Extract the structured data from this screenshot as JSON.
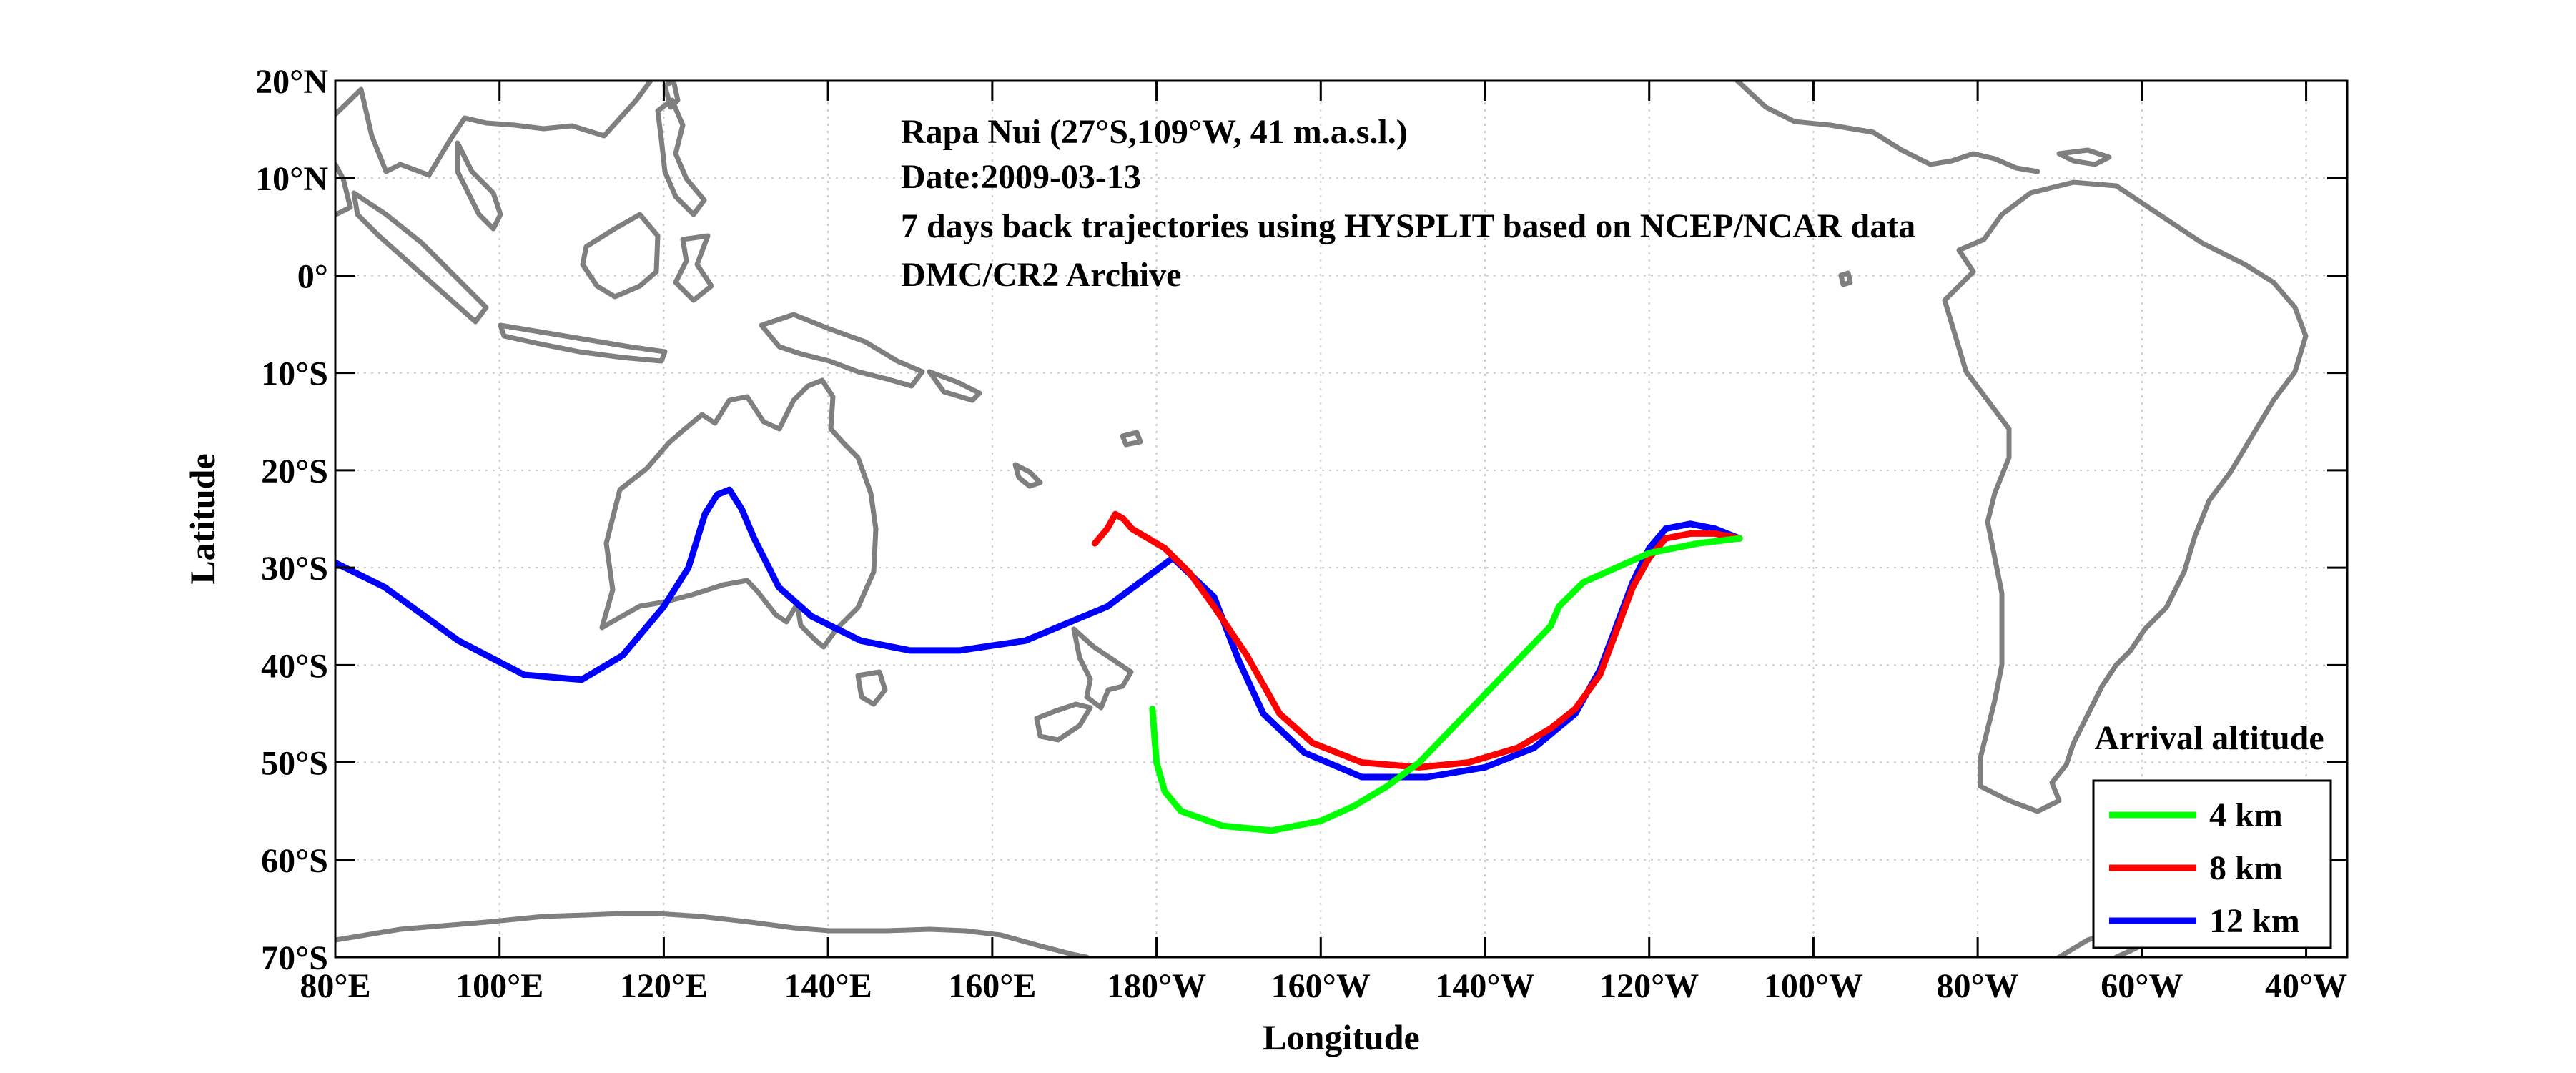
{
  "annotation": {
    "line1": "Rapa Nui (27°S,109°W, 41 m.a.s.l.)",
    "line2": "Date:2009-03-13",
    "line3": "7 days back trajectories using HYSPLIT based on NCEP/NCAR data",
    "line4": "DMC/CR2 Archive"
  },
  "axes": {
    "xlabel": "Longitude",
    "ylabel": "Latitude"
  },
  "colors": {
    "coast": "#7f7f7f",
    "grid": "#c8c8c8",
    "series": [
      "#00ff00",
      "#ff0000",
      "#0000ff"
    ]
  },
  "chart_data": {
    "type": "line",
    "xlim": [
      80,
      325
    ],
    "ylim": [
      -70,
      20
    ],
    "grid": true,
    "legend_placement": "bottom-right",
    "legend_title": "Arrival altitude",
    "xticks": [
      80,
      100,
      120,
      140,
      160,
      180,
      200,
      220,
      240,
      260,
      280,
      300,
      320
    ],
    "xticklabels": [
      "80°E",
      "100°E",
      "120°E",
      "140°E",
      "160°E",
      "180°W",
      "160°W",
      "140°W",
      "120°W",
      "100°W",
      "80°W",
      "60°W",
      "40°W"
    ],
    "yticks": [
      20,
      10,
      0,
      -10,
      -20,
      -30,
      -40,
      -50,
      -60,
      -70
    ],
    "yticklabels": [
      "20°N",
      "10°N",
      "0°",
      "10°S",
      "20°S",
      "30°S",
      "40°S",
      "50°S",
      "60°S",
      "70°S"
    ],
    "series": [
      {
        "name": "4 km",
        "x": [
          251,
          246,
          240,
          236,
          232,
          229,
          228,
          224,
          220,
          216,
          212,
          208,
          204,
          200,
          194,
          188,
          183,
          181,
          180,
          179.5
        ],
        "y": [
          -27,
          -27.5,
          -28.5,
          -30,
          -31.5,
          -34,
          -36,
          -39.5,
          -43,
          -46.5,
          -50,
          -52.5,
          -54.5,
          -56,
          -57,
          -56.5,
          -55,
          -53,
          -50,
          -44.5
        ]
      },
      {
        "name": "8 km",
        "x": [
          251,
          248,
          245,
          242,
          240,
          238,
          236,
          234,
          231,
          228,
          224,
          218,
          212,
          205,
          199,
          195,
          191,
          187,
          184,
          181,
          177,
          176,
          175,
          174,
          172.5
        ],
        "y": [
          -27,
          -26.5,
          -26.5,
          -27,
          -29,
          -32,
          -36.5,
          -41,
          -44.5,
          -46.5,
          -48.5,
          -50,
          -50.5,
          -50,
          -48,
          -45,
          -39,
          -34,
          -30.5,
          -28,
          -26,
          -25,
          -24.5,
          -26,
          -27.5
        ]
      },
      {
        "name": "12 km",
        "x": [
          251,
          248,
          245,
          242,
          240,
          238,
          236,
          234,
          231,
          226,
          220,
          213,
          205,
          198,
          193,
          190,
          187,
          182,
          174,
          164,
          156,
          150,
          144,
          138,
          134,
          131,
          129.5,
          128,
          126.5,
          125,
          123,
          120,
          115,
          110,
          103,
          95,
          86,
          80
        ],
        "y": [
          -27,
          -26,
          -25.5,
          -26,
          -28,
          -31.5,
          -36,
          -40.5,
          -45,
          -48.5,
          -50.5,
          -51.5,
          -51.5,
          -49,
          -45,
          -39.5,
          -33,
          -29,
          -34,
          -37.5,
          -38.5,
          -38.5,
          -37.5,
          -35,
          -32,
          -27,
          -24,
          -22,
          -22.5,
          -24.5,
          -30,
          -34,
          -39,
          -41.5,
          -41,
          -37.5,
          -32,
          -29.5
        ]
      }
    ]
  }
}
